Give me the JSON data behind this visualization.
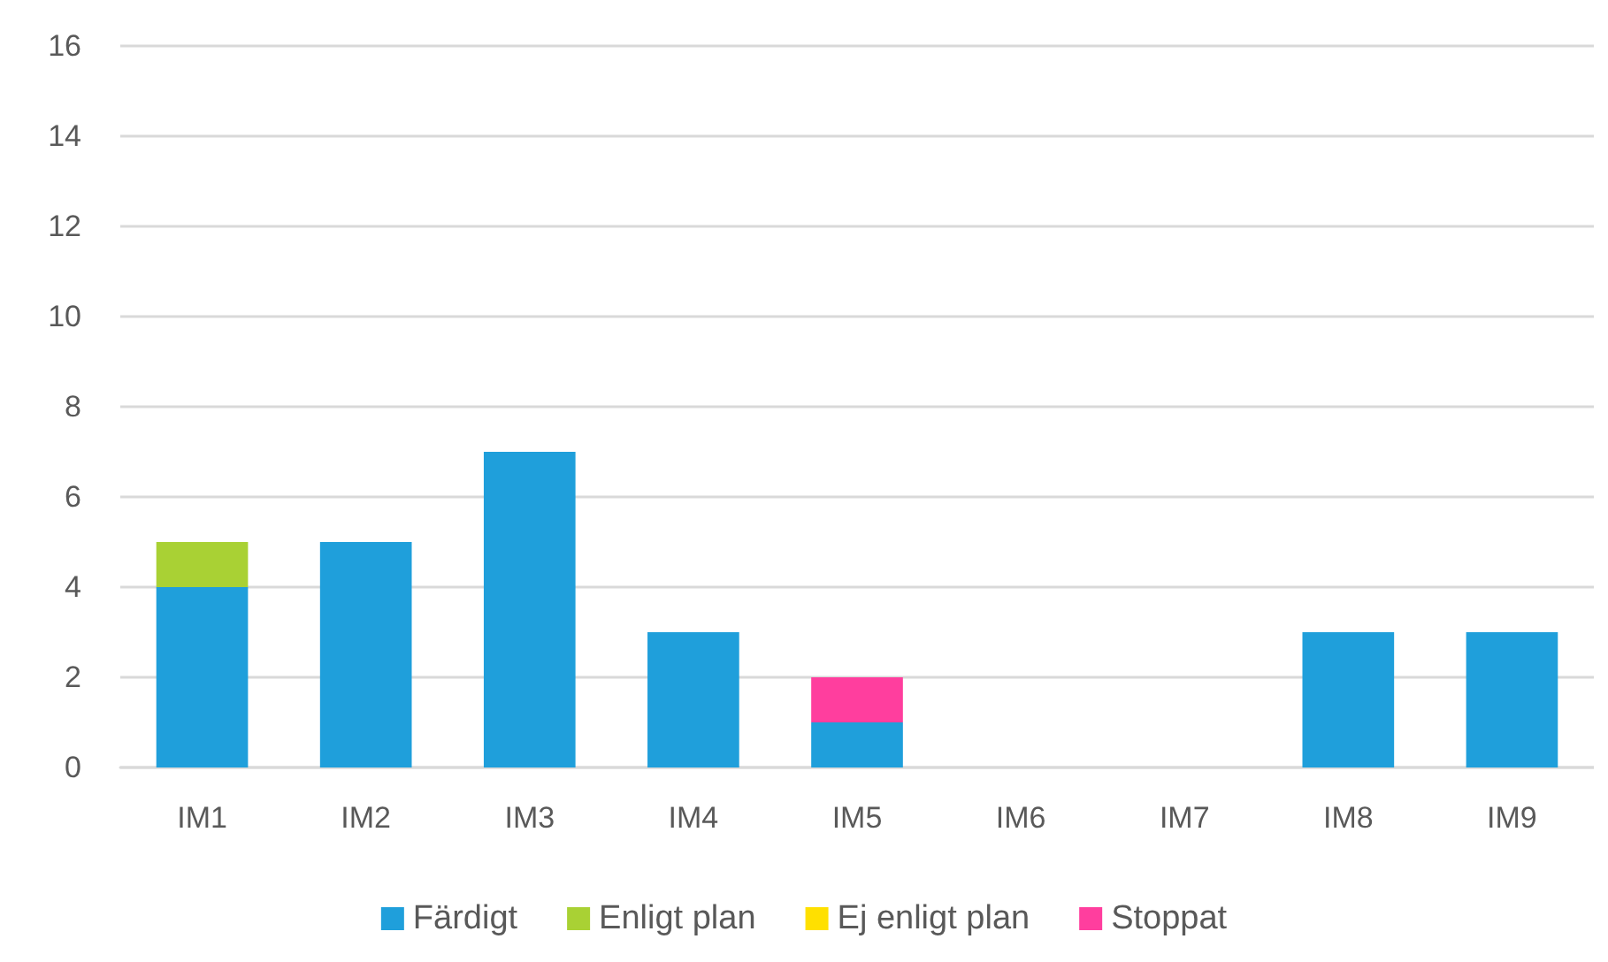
{
  "chart_data": {
    "type": "bar",
    "stacked": true,
    "categories": [
      "IM1",
      "IM2",
      "IM3",
      "IM4",
      "IM5",
      "IM6",
      "IM7",
      "IM8",
      "IM9"
    ],
    "series": [
      {
        "name": "Färdigt",
        "color": "#1f9fdb",
        "values": [
          4,
          5,
          7,
          3,
          1,
          0,
          0,
          3,
          3
        ]
      },
      {
        "name": "Enligt plan",
        "color": "#a9d134",
        "values": [
          1,
          0,
          0,
          0,
          0,
          0,
          0,
          0,
          0
        ]
      },
      {
        "name": "Ej enligt plan",
        "color": "#ffe000",
        "values": [
          0,
          0,
          0,
          0,
          0,
          0,
          0,
          0,
          0
        ]
      },
      {
        "name": "Stoppat",
        "color": "#ff3e9e",
        "values": [
          0,
          0,
          0,
          0,
          1,
          0,
          0,
          0,
          0
        ]
      }
    ],
    "ylim": [
      0,
      16
    ],
    "yticks": [
      0,
      2,
      4,
      6,
      8,
      10,
      12,
      14,
      16
    ],
    "grid": "y",
    "legend": "bottom"
  }
}
